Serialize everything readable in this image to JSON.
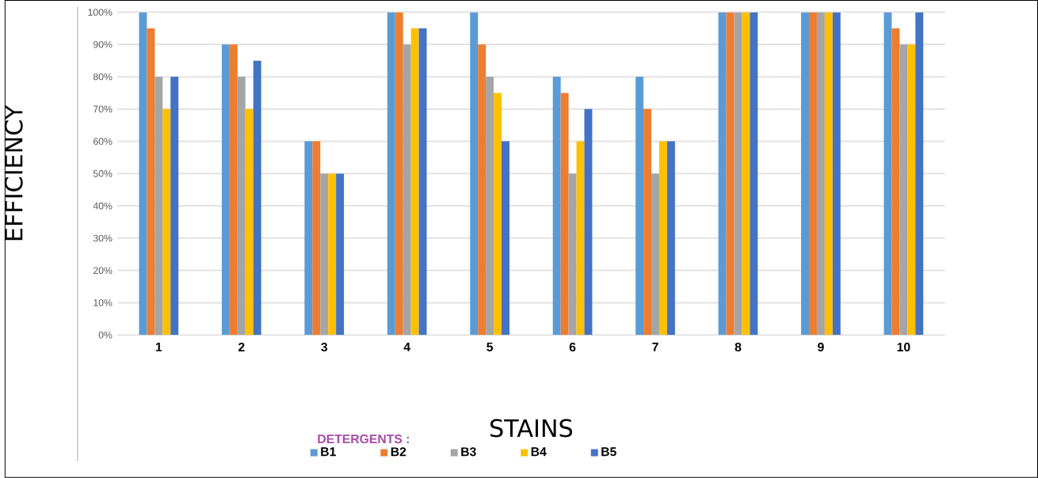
{
  "chart_data": {
    "type": "bar",
    "xlabel": "STAINS",
    "ylabel": "EFFICIENCY",
    "legend_title": "DETERGENTS :",
    "categories": [
      "1",
      "2",
      "3",
      "4",
      "5",
      "6",
      "7",
      "8",
      "9",
      "10"
    ],
    "series": [
      {
        "name": "B1",
        "color": "#5b9bd5",
        "values": [
          100,
          90,
          60,
          100,
          100,
          80,
          80,
          100,
          100,
          100
        ]
      },
      {
        "name": "B2",
        "color": "#ed7d31",
        "values": [
          95,
          90,
          60,
          100,
          90,
          75,
          70,
          100,
          100,
          95
        ]
      },
      {
        "name": "B3",
        "color": "#a5a5a5",
        "values": [
          80,
          80,
          50,
          90,
          80,
          50,
          50,
          100,
          100,
          90
        ]
      },
      {
        "name": "B4",
        "color": "#ffc000",
        "values": [
          70,
          70,
          50,
          95,
          75,
          60,
          60,
          100,
          100,
          90
        ]
      },
      {
        "name": "B5",
        "color": "#4472c4",
        "values": [
          80,
          85,
          50,
          95,
          60,
          70,
          60,
          100,
          100,
          100
        ]
      }
    ],
    "ylim": [
      0,
      100
    ],
    "yticks": [
      {
        "value": 0,
        "label": "0%"
      },
      {
        "value": 10,
        "label": "10%"
      },
      {
        "value": 20,
        "label": "20%"
      },
      {
        "value": 30,
        "label": "30%"
      },
      {
        "value": 40,
        "label": "40%"
      },
      {
        "value": 50,
        "label": "50%"
      },
      {
        "value": 60,
        "label": "60%"
      },
      {
        "value": 70,
        "label": "70%"
      },
      {
        "value": 80,
        "label": "80%"
      },
      {
        "value": 90,
        "label": "90%"
      },
      {
        "value": 100,
        "label": "100%"
      }
    ],
    "grid": "y",
    "legend": "bottom"
  }
}
